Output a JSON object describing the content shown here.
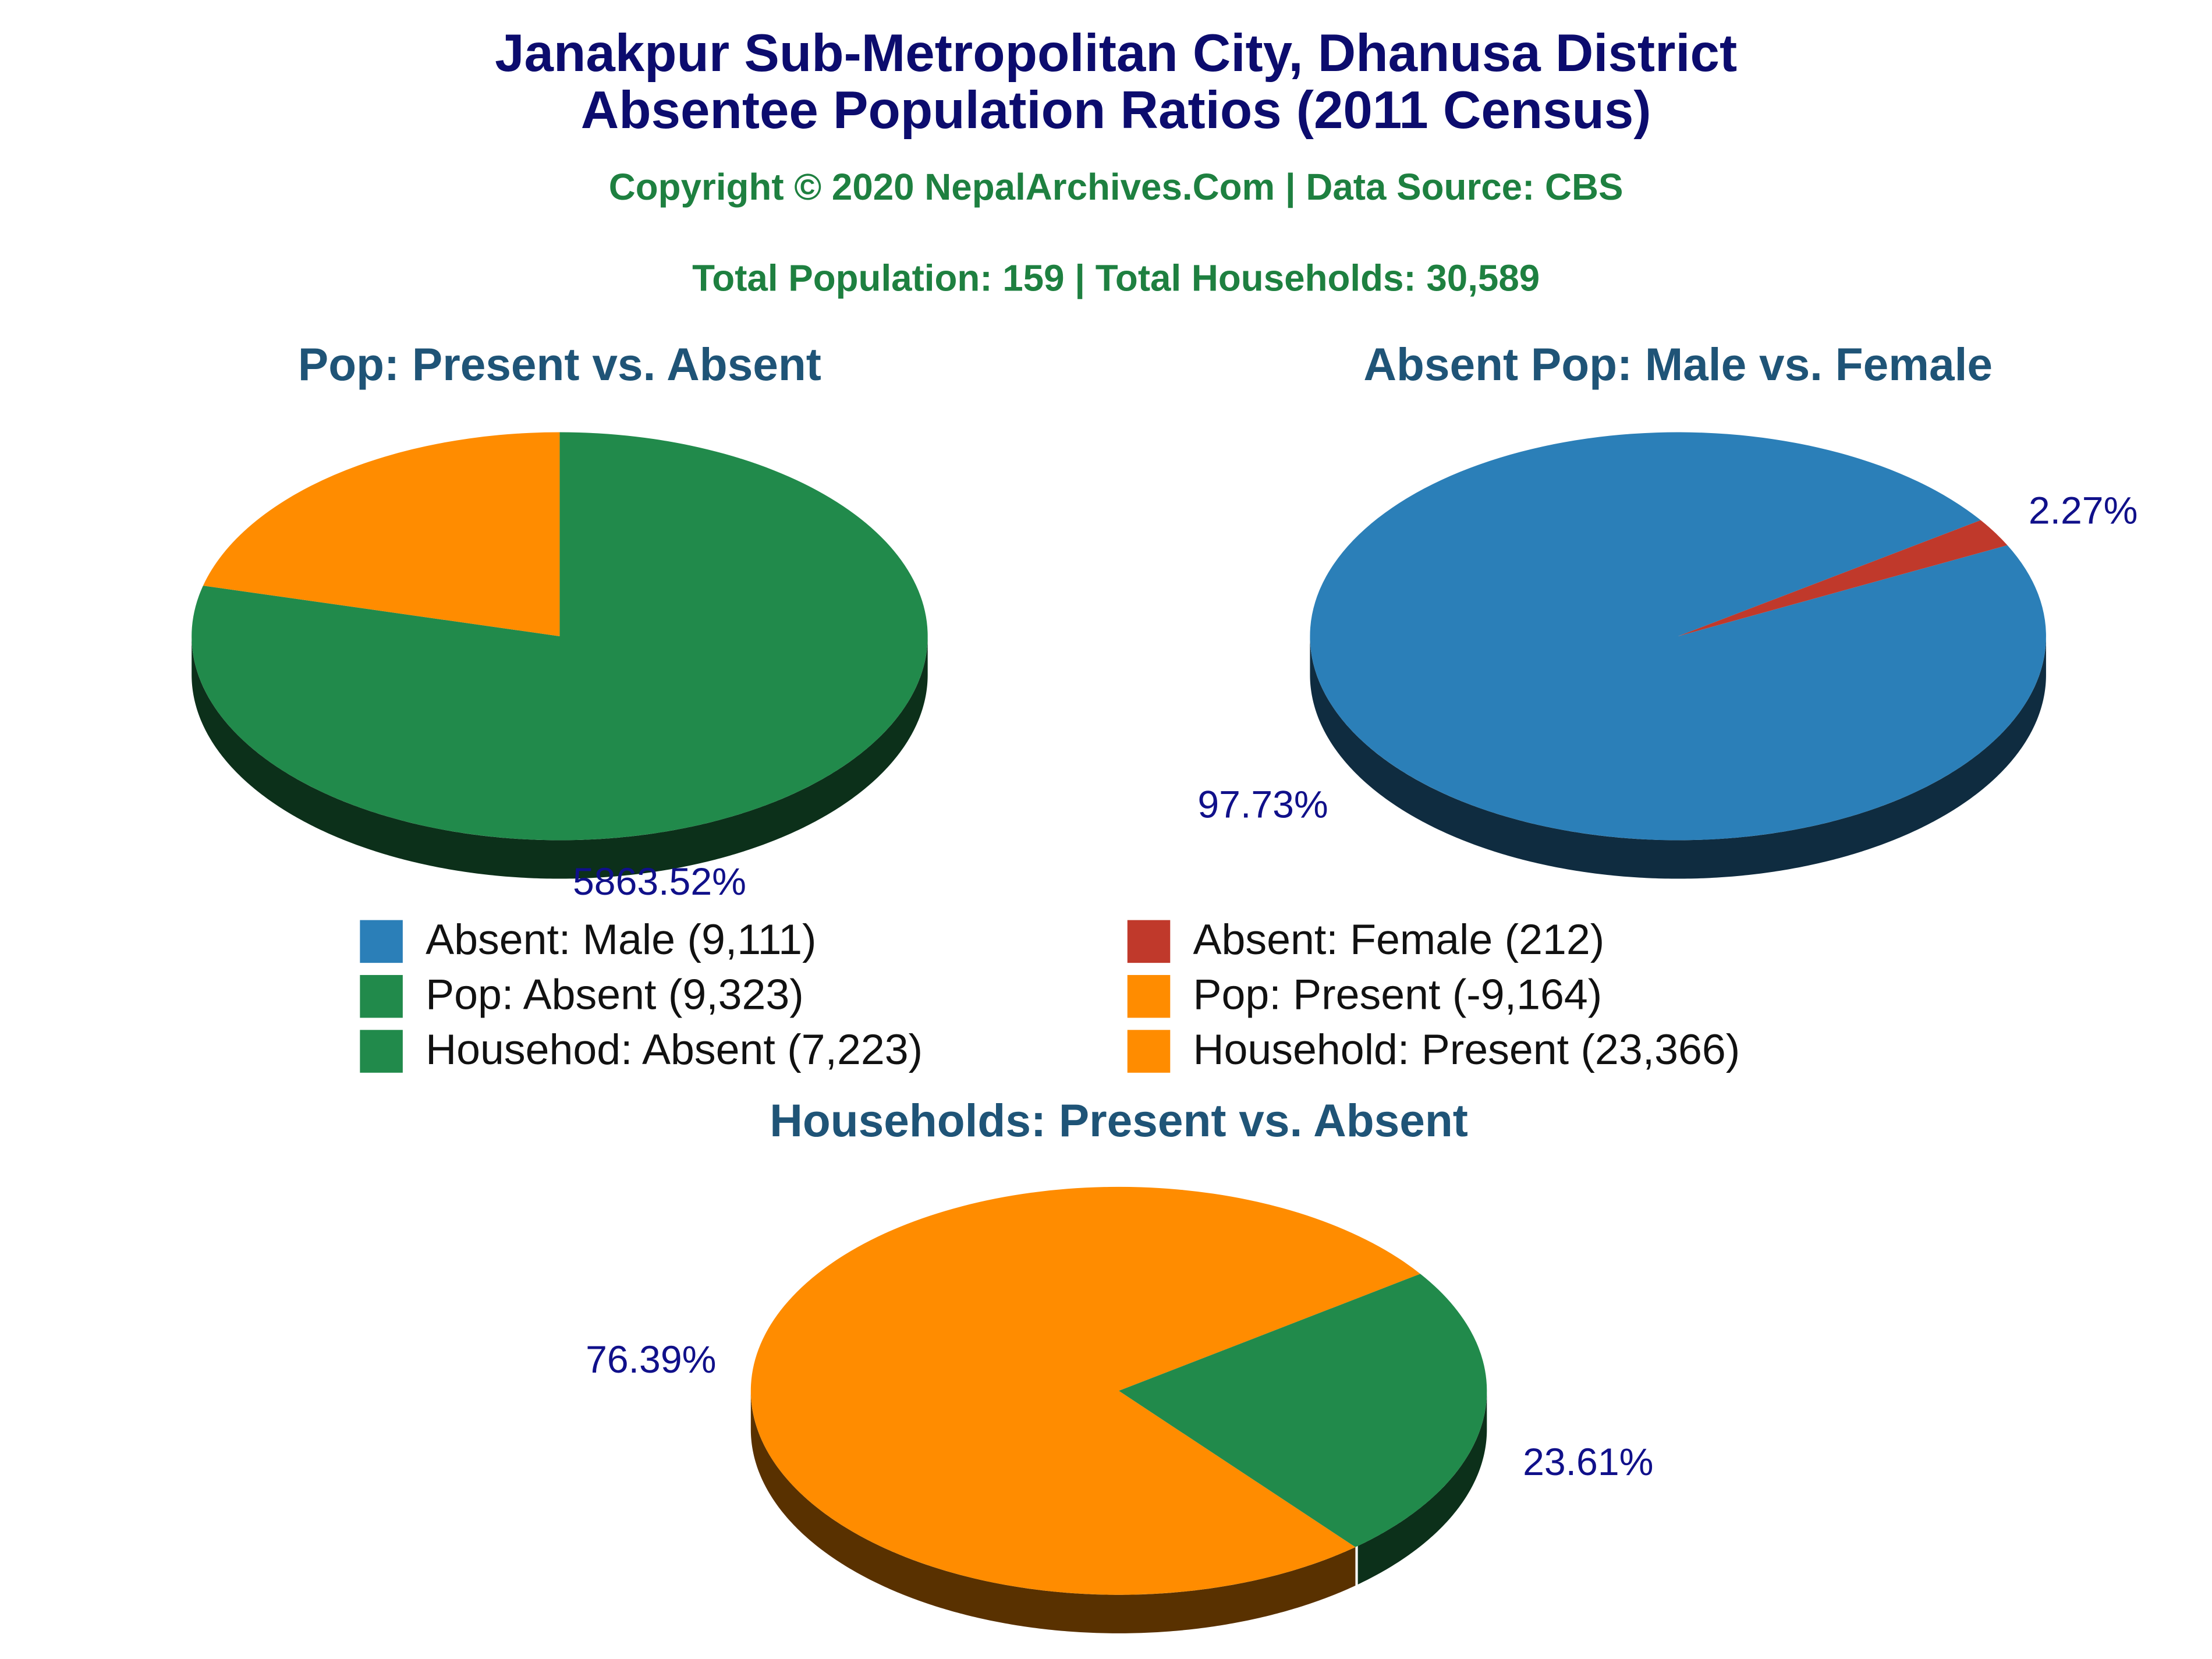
{
  "title": "Janakpur Sub-Metropolitan City, Dhanusa District",
  "subtitle": "Absentee Population Ratios (2011 Census)",
  "copyright": "Copyright © 2020 NepalArchives.Com | Data Source: CBS",
  "totals": "Total Population: 159 | Total Households: 30,589",
  "legend": [
    {
      "name": "Absent: Male (9,111)",
      "color": "#2b7fb8"
    },
    {
      "name": "Absent: Female (212)",
      "color": "#c0392b"
    },
    {
      "name": "Pop: Absent (9,323)",
      "color": "#218a4b"
    },
    {
      "name": "Pop: Present (-9,164)",
      "color": "#ff8c00"
    },
    {
      "name": "Househod: Absent (7,223)",
      "color": "#218a4b"
    },
    {
      "name": "Household: Present (23,366)",
      "color": "#ff8c00"
    }
  ],
  "chart_data": [
    {
      "type": "pie",
      "title": "Pop: Present vs. Absent",
      "values": [
        5863.52,
        1560
      ],
      "value_labels": [
        "5863.52%",
        null
      ],
      "colors": [
        "#218a4b",
        "#ff8c00"
      ]
    },
    {
      "type": "pie",
      "title": "Absent Pop: Male vs. Female",
      "values": [
        97.73,
        2.27
      ],
      "value_labels": [
        "97.73%",
        "2.27%"
      ],
      "colors": [
        "#2b7fb8",
        "#c0392b"
      ]
    },
    {
      "type": "pie",
      "title": "Households: Present vs. Absent",
      "values": [
        76.39,
        23.61
      ],
      "value_labels": [
        "76.39%",
        "23.61%"
      ],
      "colors": [
        "#ff8c00",
        "#218a4b"
      ]
    }
  ]
}
